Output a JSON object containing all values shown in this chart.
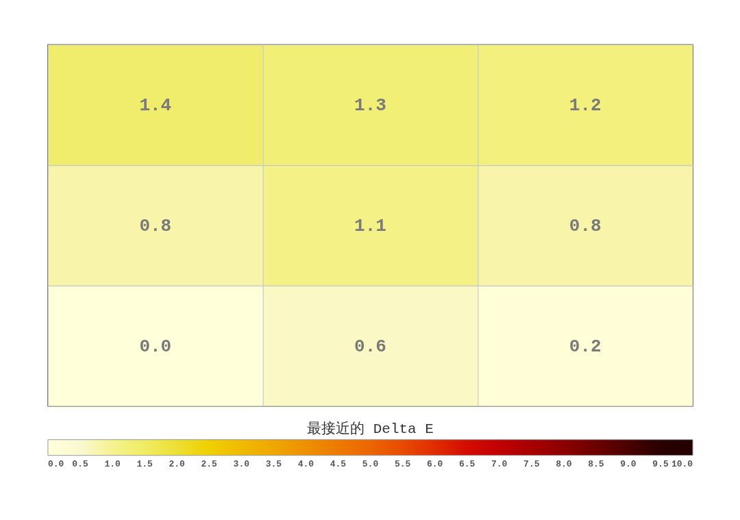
{
  "chart_data": {
    "type": "heatmap",
    "categories": [
      null,
      null,
      null
    ],
    "y_categories": [
      null,
      null,
      null
    ],
    "cells": [
      [
        1.4,
        1.3,
        1.2
      ],
      [
        0.8,
        1.1,
        0.8
      ],
      [
        0.0,
        0.6,
        0.2
      ]
    ],
    "cell_labels": [
      [
        "1.4",
        "1.3",
        "1.2"
      ],
      [
        "0.8",
        "1.1",
        "0.8"
      ],
      [
        "0.0",
        "0.6",
        "0.2"
      ]
    ],
    "clim": [
      0,
      10
    ],
    "cticks": [
      {
        "value": 0,
        "label": "0.0"
      },
      {
        "value": 0.5,
        "label": "0.5"
      },
      {
        "value": 1,
        "label": "1.0"
      },
      {
        "value": 1.5,
        "label": "1.5"
      },
      {
        "value": 2,
        "label": "2.0"
      },
      {
        "value": 2.5,
        "label": "2.5"
      },
      {
        "value": 3,
        "label": "3.0"
      },
      {
        "value": 3.5,
        "label": "3.5"
      },
      {
        "value": 4,
        "label": "4.0"
      },
      {
        "value": 4.5,
        "label": "4.5"
      },
      {
        "value": 5,
        "label": "5.0"
      },
      {
        "value": 5.5,
        "label": "5.5"
      },
      {
        "value": 6,
        "label": "6.0"
      },
      {
        "value": 6.5,
        "label": "6.5"
      },
      {
        "value": 7,
        "label": "7.0"
      },
      {
        "value": 7.5,
        "label": "7.5"
      },
      {
        "value": 8,
        "label": "8.0"
      },
      {
        "value": 8.5,
        "label": "8.5"
      },
      {
        "value": 9,
        "label": "9.0"
      },
      {
        "value": 9.5,
        "label": "9.5"
      },
      {
        "value": 10,
        "label": "10.0"
      }
    ],
    "clabel": "最接近的 Delta E",
    "grid": true,
    "tick_labels": false
  }
}
